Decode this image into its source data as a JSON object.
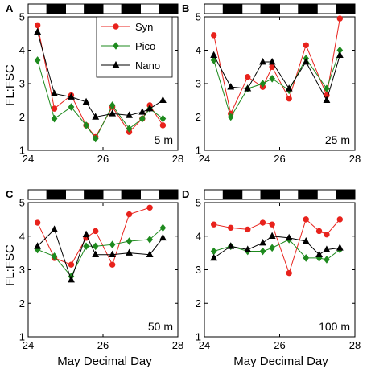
{
  "figure": {
    "x_label": "May Decimal Day",
    "y_label": "FL:FSC"
  },
  "legend": [
    {
      "name": "Syn",
      "color": "#e8221c",
      "marker": "circle"
    },
    {
      "name": "Pico",
      "color": "#1e8a1e",
      "marker": "diamond"
    },
    {
      "name": "Nano",
      "color": "#000000",
      "marker": "triangle"
    }
  ],
  "chart_data": [
    {
      "type": "line",
      "panel": "A",
      "depth_label": "5 m",
      "xlim": [
        24,
        28
      ],
      "ylim": [
        1,
        5
      ],
      "x_ticks": [
        24,
        26,
        28
      ],
      "y_ticks": [
        1,
        2,
        3,
        4,
        5
      ],
      "light_dark_bar": [
        "white",
        "black",
        "white",
        "black",
        "white",
        "black",
        "white",
        "black"
      ],
      "series": [
        {
          "name": "Syn",
          "color": "#e8221c",
          "x": [
            24.25,
            24.7,
            25.15,
            25.55,
            25.8,
            26.25,
            26.7,
            27.05,
            27.25,
            27.6
          ],
          "y": [
            4.75,
            2.25,
            2.65,
            1.75,
            1.4,
            2.3,
            1.55,
            1.95,
            2.35,
            1.75
          ]
        },
        {
          "name": "Pico",
          "color": "#1e8a1e",
          "x": [
            24.25,
            24.7,
            25.15,
            25.55,
            25.8,
            26.25,
            26.7,
            27.05,
            27.25,
            27.6
          ],
          "y": [
            3.7,
            1.95,
            2.3,
            1.75,
            1.35,
            2.35,
            1.65,
            1.95,
            2.25,
            1.95
          ]
        },
        {
          "name": "Nano",
          "color": "#000000",
          "x": [
            24.25,
            24.7,
            25.15,
            25.55,
            25.8,
            26.25,
            26.7,
            27.05,
            27.25,
            27.6
          ],
          "y": [
            4.55,
            2.7,
            2.6,
            2.45,
            2.0,
            2.1,
            2.05,
            2.15,
            2.25,
            2.5
          ]
        }
      ]
    },
    {
      "type": "line",
      "panel": "B",
      "depth_label": "25 m",
      "xlim": [
        24,
        28
      ],
      "ylim": [
        1,
        5
      ],
      "x_ticks": [
        24,
        26,
        28
      ],
      "y_ticks": [
        1,
        2,
        3,
        4,
        5
      ],
      "light_dark_bar": [
        "white",
        "black",
        "white",
        "black",
        "white",
        "black",
        "white",
        "black"
      ],
      "series": [
        {
          "name": "Syn",
          "color": "#e8221c",
          "x": [
            24.25,
            24.7,
            25.15,
            25.55,
            25.8,
            26.25,
            26.7,
            27.25,
            27.6
          ],
          "y": [
            4.45,
            2.1,
            3.2,
            2.9,
            3.5,
            2.55,
            4.15,
            2.65,
            4.95
          ]
        },
        {
          "name": "Pico",
          "color": "#1e8a1e",
          "x": [
            24.25,
            24.7,
            25.15,
            25.55,
            25.8,
            26.25,
            26.7,
            27.25,
            27.6
          ],
          "y": [
            3.7,
            2.0,
            2.85,
            3.0,
            3.15,
            2.8,
            3.75,
            2.85,
            4.0
          ]
        },
        {
          "name": "Nano",
          "color": "#000000",
          "x": [
            24.25,
            24.7,
            25.15,
            25.55,
            25.8,
            26.25,
            26.7,
            27.25,
            27.6
          ],
          "y": [
            3.85,
            2.9,
            2.85,
            3.65,
            3.65,
            2.85,
            3.65,
            2.5,
            3.85
          ]
        }
      ]
    },
    {
      "type": "line",
      "panel": "C",
      "depth_label": "50 m",
      "xlim": [
        24,
        28
      ],
      "ylim": [
        1,
        5
      ],
      "x_ticks": [
        24,
        26,
        28
      ],
      "y_ticks": [
        1,
        2,
        3,
        4,
        5
      ],
      "light_dark_bar": [
        "white",
        "black",
        "white",
        "black",
        "white",
        "black",
        "white",
        "black"
      ],
      "series": [
        {
          "name": "Syn",
          "color": "#e8221c",
          "x": [
            24.25,
            24.7,
            25.15,
            25.55,
            25.8,
            26.25,
            26.7,
            27.25
          ],
          "y": [
            4.4,
            3.35,
            3.15,
            3.95,
            4.15,
            3.15,
            4.65,
            4.85
          ]
        },
        {
          "name": "Pico",
          "color": "#1e8a1e",
          "x": [
            24.25,
            24.7,
            25.15,
            25.55,
            25.8,
            26.25,
            26.7,
            27.25,
            27.6
          ],
          "y": [
            3.6,
            3.4,
            2.8,
            3.7,
            3.7,
            3.75,
            3.85,
            3.9,
            4.25
          ]
        },
        {
          "name": "Nano",
          "color": "#000000",
          "x": [
            24.25,
            24.7,
            25.15,
            25.55,
            25.8,
            26.25,
            26.7,
            27.25,
            27.6
          ],
          "y": [
            3.7,
            4.2,
            2.7,
            4.05,
            3.45,
            3.45,
            3.5,
            3.45,
            3.95
          ]
        }
      ]
    },
    {
      "type": "line",
      "panel": "D",
      "depth_label": "100 m",
      "xlim": [
        24,
        28
      ],
      "ylim": [
        1,
        5
      ],
      "x_ticks": [
        24,
        26,
        28
      ],
      "y_ticks": [
        1,
        2,
        3,
        4,
        5
      ],
      "light_dark_bar": [
        "white",
        "black",
        "white",
        "black",
        "white",
        "black",
        "white",
        "black"
      ],
      "series": [
        {
          "name": "Syn",
          "color": "#e8221c",
          "x": [
            24.25,
            24.7,
            25.15,
            25.55,
            25.8,
            26.25,
            26.7,
            27.05,
            27.25,
            27.6
          ],
          "y": [
            4.35,
            4.25,
            4.2,
            4.4,
            4.35,
            2.9,
            4.5,
            4.15,
            4.05,
            4.5
          ]
        },
        {
          "name": "Pico",
          "color": "#1e8a1e",
          "x": [
            24.25,
            24.7,
            25.15,
            25.55,
            25.8,
            26.25,
            26.7,
            27.05,
            27.25,
            27.6
          ],
          "y": [
            3.55,
            3.7,
            3.55,
            3.55,
            3.65,
            3.9,
            3.35,
            3.35,
            3.3,
            3.6
          ]
        },
        {
          "name": "Nano",
          "color": "#000000",
          "x": [
            24.25,
            24.7,
            25.15,
            25.55,
            25.8,
            26.25,
            26.7,
            27.05,
            27.25,
            27.6
          ],
          "y": [
            3.35,
            3.7,
            3.6,
            3.8,
            4.0,
            3.95,
            3.85,
            3.45,
            3.6,
            3.65
          ]
        }
      ]
    }
  ]
}
